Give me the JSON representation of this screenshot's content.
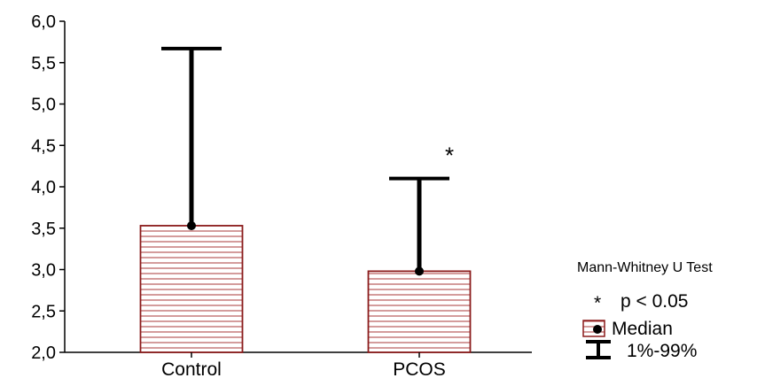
{
  "chart_data": {
    "type": "bar",
    "categories": [
      "Control",
      "PCOS"
    ],
    "series": [
      {
        "values": [
          3.53,
          2.98
        ],
        "upper": [
          5.67,
          4.1
        ]
      }
    ],
    "y_ticks": [
      "2,0",
      "2,5",
      "3,0",
      "3,5",
      "4,0",
      "4,5",
      "5,0",
      "5,5",
      "6,0"
    ],
    "ylim": [
      2.0,
      6.0
    ],
    "grid": false,
    "significance": {
      "category": "PCOS",
      "mark": "*"
    },
    "legend": {
      "placement": "right",
      "test_name": "Mann-Whitney U Test",
      "sig_mark": "*",
      "sig_text": "p < 0.05",
      "median_label": "Median",
      "range_label": "1%-99%"
    },
    "colors": {
      "bar_edge": "#8b1c1c",
      "hatch": "#a83a3a",
      "whisker": "#000000"
    }
  }
}
